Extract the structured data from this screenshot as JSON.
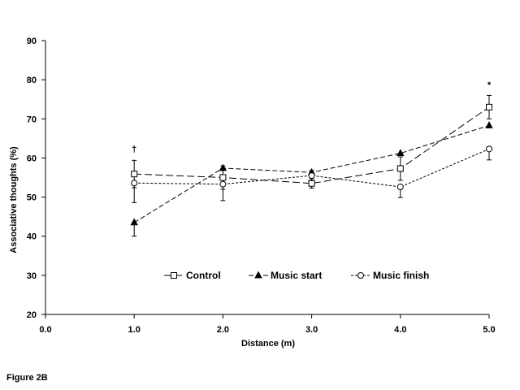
{
  "chart_data": {
    "type": "line",
    "xlabel": "Distance (m)",
    "ylabel": "Associative thoughts (%)",
    "xlim": [
      0,
      5
    ],
    "ylim": [
      20,
      90
    ],
    "x_ticks": [
      0,
      1,
      2,
      3,
      4,
      5
    ],
    "x_tick_labels": [
      "0.0",
      "1.0",
      "2.0",
      "3.0",
      "4.0",
      "5.0"
    ],
    "y_ticks": [
      20,
      30,
      40,
      50,
      60,
      70,
      80,
      90
    ],
    "y_tick_labels": [
      "20",
      "30",
      "40",
      "50",
      "60",
      "70",
      "80",
      "90"
    ],
    "grid": false,
    "legend_position": "inside-bottom",
    "x": [
      1,
      2,
      3,
      4,
      5
    ],
    "series": [
      {
        "name": "Control",
        "marker": "open-square",
        "dash": "long-dash",
        "values": [
          55.9,
          55.0,
          53.5,
          57.3,
          73.0
        ],
        "err_low": [
          3.5,
          3.0,
          1.2,
          3.0,
          3.0
        ],
        "err_high": [
          3.5,
          3.0,
          1.2,
          3.0,
          3.0
        ]
      },
      {
        "name": "Music start",
        "marker": "filled-triangle",
        "dash": "dash",
        "values": [
          43.5,
          57.4,
          56.3,
          61.2,
          68.3
        ],
        "err_low": [
          3.5,
          0,
          0,
          0,
          0
        ],
        "err_high": [
          0,
          0,
          0,
          0,
          0
        ]
      },
      {
        "name": "Music finish",
        "marker": "open-circle",
        "dash": "short-dash",
        "values": [
          53.6,
          53.3,
          55.5,
          52.6,
          62.3
        ],
        "err_low": [
          5.0,
          4.2,
          1.3,
          2.7,
          2.8
        ],
        "err_high": [
          0,
          0,
          1.3,
          0,
          0
        ]
      }
    ],
    "annotations": [
      {
        "text": "†",
        "x": 1,
        "y": 61.5
      },
      {
        "text": "*",
        "x": 5,
        "y": 78.0
      }
    ]
  },
  "caption": "Figure 2B"
}
